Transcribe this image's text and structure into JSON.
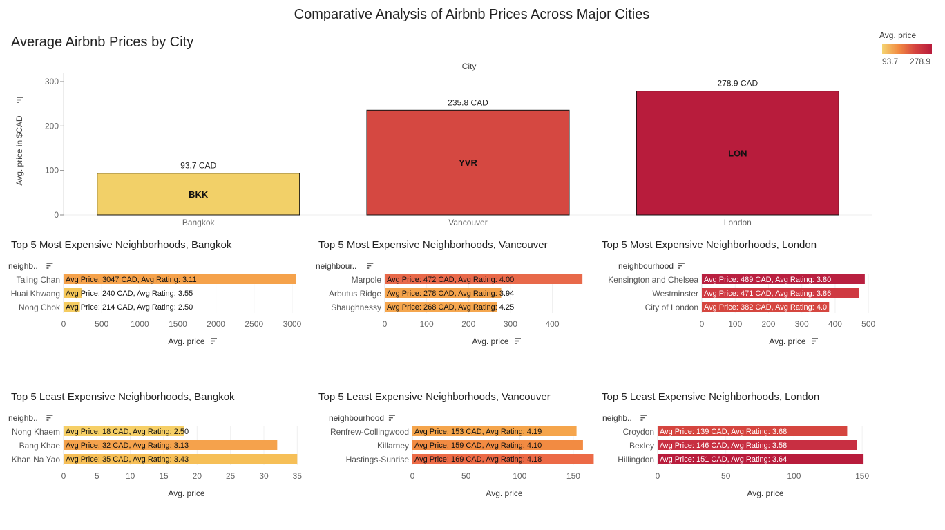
{
  "dashboard": {
    "title": "Comparative Analysis of Airbnb Prices Across Major Cities"
  },
  "legend": {
    "title": "Avg. price",
    "min_label": "93.7",
    "max_label": "278.9",
    "min": 93.7,
    "max": 278.9,
    "colors": [
      "#f4d371",
      "#f28b42",
      "#d5433f",
      "#b81c3c"
    ]
  },
  "main_chart": {
    "title": "Average Airbnb Prices by City",
    "header": "City",
    "ylabel": "Avg. price in $CAD",
    "sort_icon": "sort-descending-icon"
  },
  "small_charts": [
    {
      "title": "Top 5 Most Expensive Neighborhoods, Bangkok",
      "dim_label": "neighb..",
      "measure_label": "Avg. price"
    },
    {
      "title": "Top 5 Most Expensive Neighborhoods, Vancouver",
      "dim_label": "neighbour..",
      "measure_label": "Avg. price"
    },
    {
      "title": "Top 5 Most Expensive Neighborhoods, London",
      "dim_label": "neighbourhood",
      "measure_label": "Avg. price"
    },
    {
      "title": "Top 5 Least Expensive Neighborhoods, Bangkok",
      "dim_label": "neighb..",
      "measure_label": "Avg. price"
    },
    {
      "title": "Top 5 Least Expensive Neighborhoods, Vancouver",
      "dim_label": "neighbourhood",
      "measure_label": "Avg. price"
    },
    {
      "title": "Top 5 Least Expensive Neighborhoods, London",
      "dim_label": "neighb..",
      "measure_label": "Avg. price"
    }
  ],
  "chart_data": [
    {
      "type": "bar",
      "title": "Average Airbnb Prices by City",
      "xlabel": "City",
      "ylabel": "Avg. price in $CAD",
      "categories": [
        "Bangkok",
        "Vancouver",
        "London"
      ],
      "codes": [
        "BKK",
        "YVR",
        "LON"
      ],
      "values": [
        93.7,
        235.8,
        278.9
      ],
      "data_labels": [
        "93.7 CAD",
        "235.8 CAD",
        "278.9 CAD"
      ],
      "colors": [
        "#f2d068",
        "#d54841",
        "#b81c3c"
      ],
      "ylim": [
        0,
        300
      ],
      "yticks": [
        0,
        100,
        200,
        300
      ],
      "grid": false
    },
    {
      "type": "bar",
      "orientation": "horizontal",
      "title": "Top 5 Most Expensive Neighborhoods, Bangkok",
      "xlabel": "Avg. price",
      "categories": [
        "Taling Chan",
        "Huai Khwang",
        "Nong Chok"
      ],
      "values": [
        3047,
        240,
        214
      ],
      "data_labels": [
        "Avg Price: 3047 CAD, Avg Rating: 3.11",
        "Avg Price: 240 CAD, Avg Rating: 3.55",
        "Avg Price: 214 CAD, Avg Rating: 2.50"
      ],
      "colors": [
        "#f5a24b",
        "#f5c759",
        "#f5cc60"
      ],
      "xlim": [
        0,
        3200
      ],
      "xticks": [
        0,
        500,
        1000,
        1500,
        2000,
        2500,
        3000
      ]
    },
    {
      "type": "bar",
      "orientation": "horizontal",
      "title": "Top 5 Most Expensive Neighborhoods, Vancouver",
      "xlabel": "Avg. price",
      "categories": [
        "Marpole",
        "Arbutus Ridge",
        "Shaughnessy"
      ],
      "values": [
        472,
        278,
        268
      ],
      "data_labels": [
        "Avg Price: 472 CAD, Avg Rating: 4.00",
        "Avg Price: 278 CAD, Avg Rating: 3.94",
        "Avg Price: 268 CAD, Avg Rating: 4.25"
      ],
      "colors": [
        "#e8694a",
        "#f4a34c",
        "#f5a64e"
      ],
      "xlim": [
        0,
        480
      ],
      "xticks": [
        0,
        100,
        200,
        300,
        400
      ]
    },
    {
      "type": "bar",
      "orientation": "horizontal",
      "title": "Top 5 Most Expensive Neighborhoods, London",
      "xlabel": "Avg. price",
      "categories": [
        "Kensington and Chelsea",
        "Westminster",
        "City of London"
      ],
      "values": [
        489,
        471,
        382
      ],
      "data_labels": [
        "Avg Price: 489 CAD, Avg Rating: 3.80",
        "Avg Price: 471 CAD, Avg Rating: 3.86",
        "Avg Price: 382 CAD, Avg Rating: 4.0"
      ],
      "colors": [
        "#b92040",
        "#cf3a42",
        "#d5463f"
      ],
      "xlim": [
        0,
        510
      ],
      "xticks": [
        0,
        100,
        200,
        300,
        400,
        500
      ]
    },
    {
      "type": "bar",
      "orientation": "horizontal",
      "title": "Top 5 Least Expensive Neighborhoods, Bangkok",
      "xlabel": "Avg. price",
      "categories": [
        "Nong Khaem",
        "Bang Khae",
        "Khan Na Yao"
      ],
      "values": [
        18,
        32,
        35
      ],
      "data_labels": [
        "Avg Price: 18 CAD, Avg Rating: 2.50",
        "Avg Price: 32 CAD, Avg Rating: 3.13",
        "Avg Price: 35 CAD, Avg Rating: 3.43"
      ],
      "colors": [
        "#f6cf66",
        "#f5a24c",
        "#f6bf57"
      ],
      "xlim": [
        0,
        36
      ],
      "xticks": [
        0,
        5,
        10,
        15,
        20,
        25,
        30,
        35
      ]
    },
    {
      "type": "bar",
      "orientation": "horizontal",
      "title": "Top 5 Least Expensive Neighborhoods, Vancouver",
      "xlabel": "Avg. price",
      "categories": [
        "Renfrew-Collingwood",
        "Killarney",
        "Hastings-Sunrise"
      ],
      "values": [
        153,
        159,
        169
      ],
      "data_labels": [
        "Avg Price: 153 CAD, Avg Rating: 4.19",
        "Avg Price: 159 CAD, Avg Rating: 4.10",
        "Avg Price: 169 CAD, Avg Rating: 4.18"
      ],
      "colors": [
        "#f5a54c",
        "#f28b42",
        "#ec6a46"
      ],
      "xlim": [
        0,
        170
      ],
      "xticks": [
        0,
        50,
        100,
        150
      ]
    },
    {
      "type": "bar",
      "orientation": "horizontal",
      "title": "Top 5 Least Expensive Neighborhoods, London",
      "xlabel": "Avg. price",
      "categories": [
        "Croydon",
        "Bexley",
        "Hillingdon"
      ],
      "values": [
        139,
        146,
        151
      ],
      "data_labels": [
        "Avg Price: 139 CAD, Avg Rating: 3.68",
        "Avg Price: 146 CAD, Avg Rating: 3.58",
        "Avg Price: 151 CAD, Avg Rating: 3.64"
      ],
      "colors": [
        "#d5453f",
        "#c82f42",
        "#b81c3c"
      ],
      "xlim": [
        0,
        155
      ],
      "xticks": [
        0,
        50,
        100,
        150
      ]
    }
  ]
}
